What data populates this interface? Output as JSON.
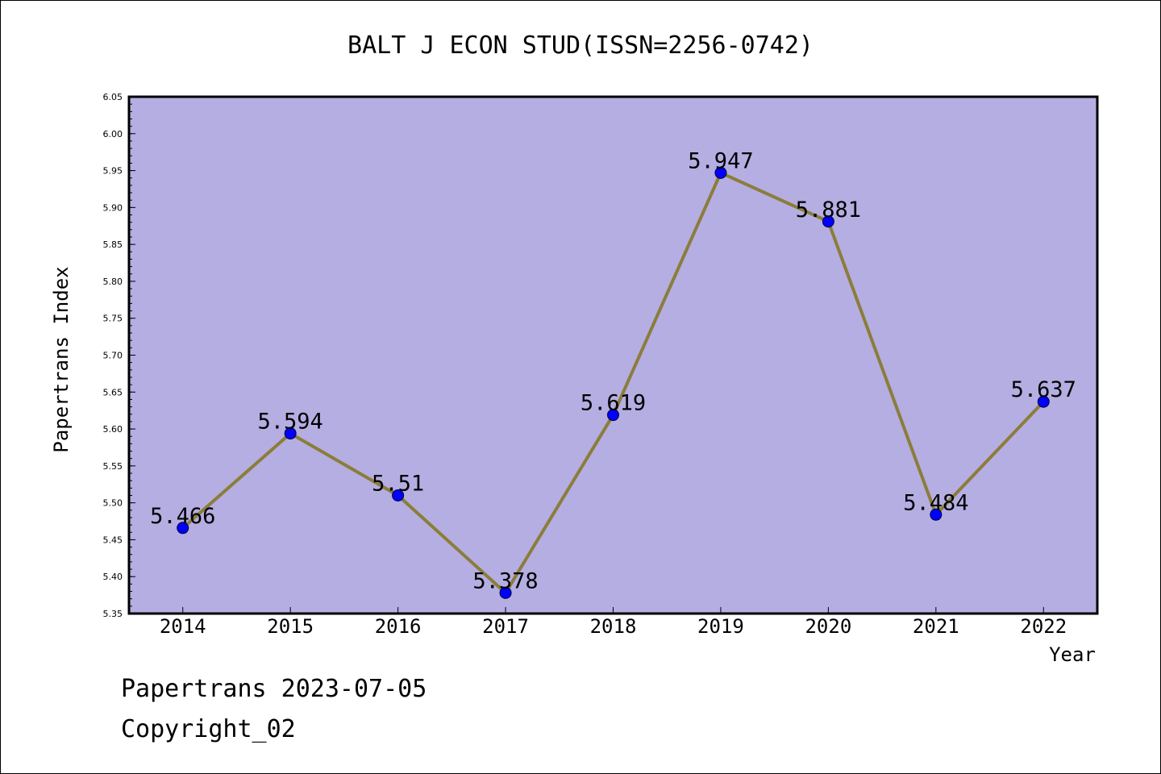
{
  "chart_data": {
    "type": "line",
    "title": "BALT J ECON STUD(ISSN=2256-0742)",
    "xlabel": "Year",
    "ylabel": "Papertrans Index",
    "categories": [
      "2014",
      "2015",
      "2016",
      "2017",
      "2018",
      "2019",
      "2020",
      "2021",
      "2022"
    ],
    "values": [
      5.466,
      5.594,
      5.51,
      5.378,
      5.619,
      5.947,
      5.881,
      5.484,
      5.637
    ],
    "data_labels": [
      "5.466",
      "5.594",
      "5.51",
      "5.378",
      "5.619",
      "5.947",
      "5.881",
      "5.484",
      "5.637"
    ],
    "ylim": [
      5.35,
      6.05
    ],
    "yticks": [
      "5.35",
      "5.40",
      "5.45",
      "5.50",
      "5.55",
      "5.60",
      "5.65",
      "5.70",
      "5.75",
      "5.80",
      "5.85",
      "5.90",
      "5.95",
      "6.00",
      "6.05"
    ],
    "grid": false,
    "legend": "none"
  },
  "footer": {
    "line1": "Papertrans 2023-07-05",
    "line2": "Copyright_02"
  },
  "colors": {
    "plot_background": "#b4aee2",
    "line": "#8b7d3a",
    "marker": "#0000ff",
    "axis": "#000000"
  }
}
